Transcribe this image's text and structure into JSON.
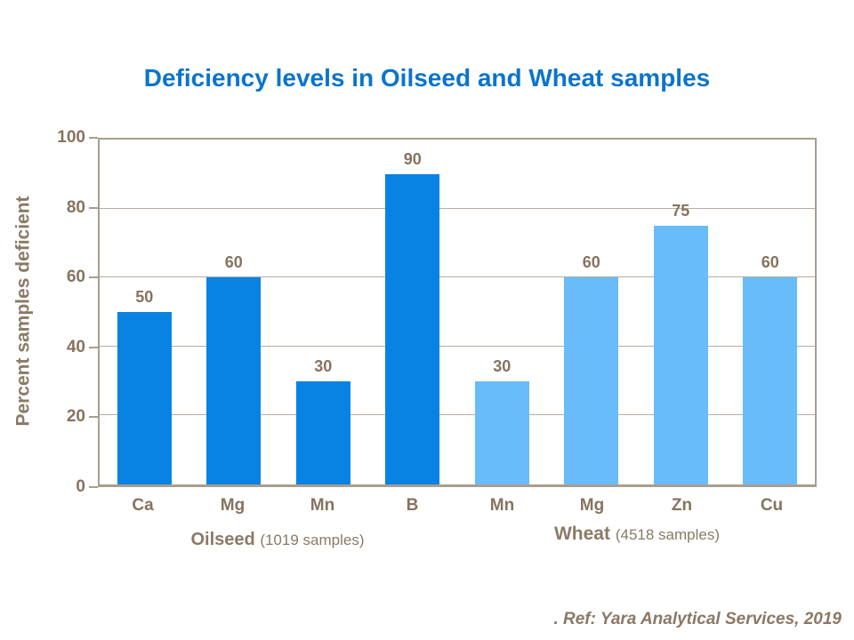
{
  "title": "Deficiency levels in Oilseed and Wheat samples",
  "footer": {
    "ref_text": ". Ref: Yara Analytical Services, 2019"
  },
  "chart_data": {
    "type": "bar",
    "title": "Deficiency levels in Oilseed and Wheat samples",
    "xlabel": "",
    "ylabel": "Percent samples deficient",
    "ylim": [
      0,
      100
    ],
    "yticks": [
      0,
      20,
      40,
      60,
      80,
      100
    ],
    "grid": "horizontal",
    "legend_position": "none",
    "series": [
      {
        "name": "Oilseed",
        "note": "(1019 samples)",
        "color": "#0883e3",
        "categories": [
          "Ca",
          "Mg",
          "Mn",
          "B"
        ],
        "values": [
          50,
          60,
          30,
          90
        ]
      },
      {
        "name": "Wheat",
        "note": "(4518 samples)",
        "color": "#68bcfa",
        "categories": [
          "Mn",
          "Mg",
          "Zn",
          "Cu"
        ],
        "values": [
          30,
          60,
          75,
          60
        ]
      }
    ],
    "colors": {
      "title_blue": "#0b74cc",
      "axis_text_brown": "#86735f",
      "axis_line": "#a89e91",
      "gridline": "#b6ada1"
    }
  }
}
